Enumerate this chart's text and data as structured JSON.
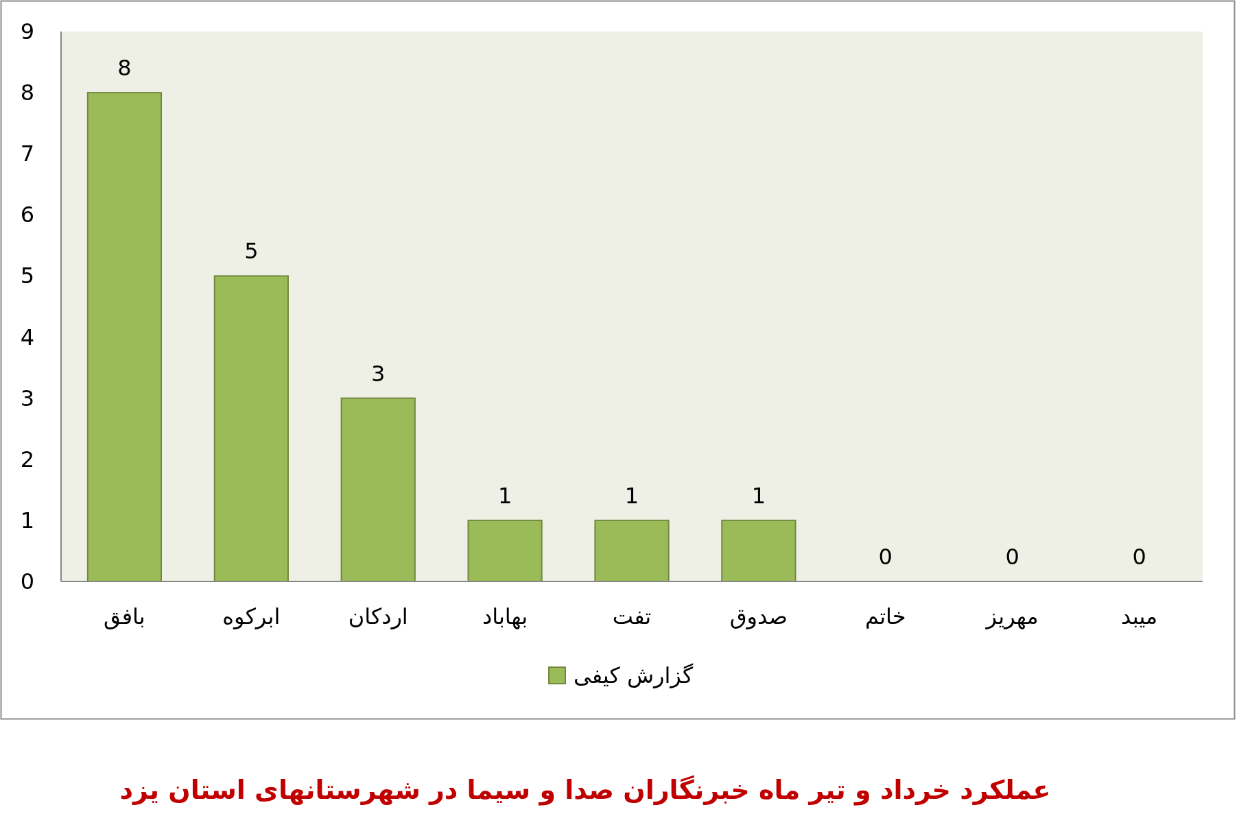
{
  "chart_data": {
    "type": "bar",
    "title": "عملکرد خرداد و تیر ماه خبرنگاران صدا و سیما در شهرستانهای استان یزد",
    "categories": [
      "بافق",
      "ابرکوه",
      "اردکان",
      "بهاباد",
      "تفت",
      "صدوق",
      "خاتم",
      "مهریز",
      "میبد"
    ],
    "series": [
      {
        "name": "گزارش کیفی",
        "color": "#9bbb59",
        "values": [
          8,
          5,
          3,
          1,
          1,
          1,
          0,
          0,
          0
        ]
      }
    ],
    "ylim": [
      0,
      9
    ],
    "yticks": [
      0,
      1,
      2,
      3,
      4,
      5,
      6,
      7,
      8,
      9
    ],
    "data_labels": true,
    "legend": "bottom"
  }
}
